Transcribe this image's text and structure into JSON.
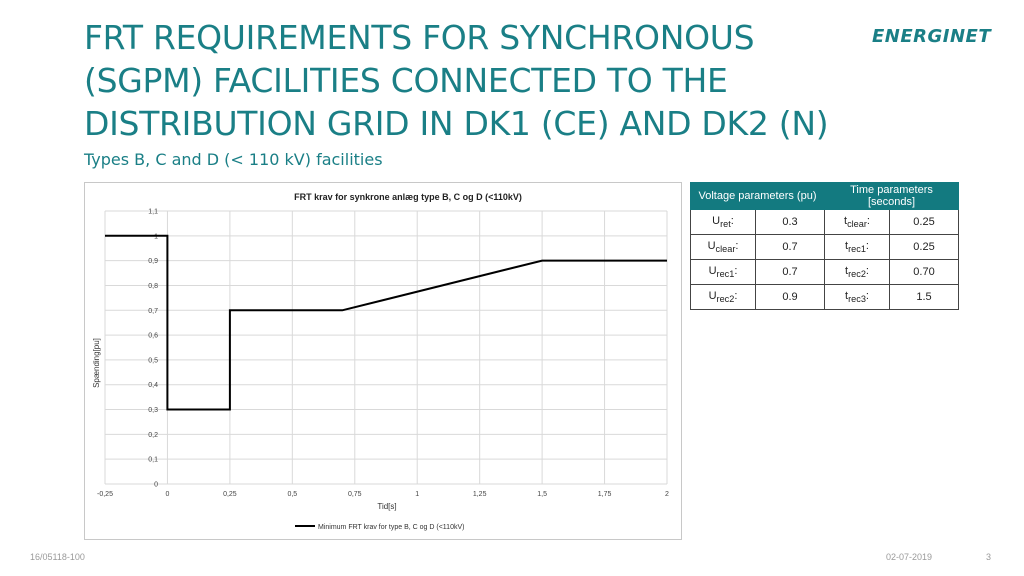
{
  "slide": {
    "title": "FRT REQUIREMENTS FOR SYNCHRONOUS (SGPM) FACILITIES CONNECTED TO THE DISTRIBUTION GRID IN DK1 (CE) AND DK2 (N)",
    "subtitle": "Types B, C and D (< 110 kV) facilities",
    "logo": "ENERGINET",
    "footer_left": "16/05118-100",
    "footer_date": "02-07-2019",
    "page_number": "3"
  },
  "colors": {
    "accent": "#1a7f86",
    "table_header": "#137a80",
    "line": "#000000",
    "grid": "#d9d9d9"
  },
  "table": {
    "headers": [
      "Voltage parameters (pu)",
      "Time parameters [seconds]"
    ],
    "rows": [
      {
        "u_base": "U",
        "u_sub": "ret",
        "u_val": "0.3",
        "t_base": "t",
        "t_sub": "clear",
        "t_val": "0.25"
      },
      {
        "u_base": "U",
        "u_sub": "clear",
        "u_val": "0.7",
        "t_base": "t",
        "t_sub": "rec1",
        "t_val": "0.25"
      },
      {
        "u_base": "U",
        "u_sub": "rec1",
        "u_val": "0.7",
        "t_base": "t",
        "t_sub": "rec2",
        "t_val": "0.70"
      },
      {
        "u_base": "U",
        "u_sub": "rec2",
        "u_val": "0.9",
        "t_base": "t",
        "t_sub": "rec3",
        "t_val": "1.5"
      }
    ]
  },
  "chart_data": {
    "type": "line",
    "title": "FRT krav for synkrone anlæg type B, C og D (<110kV)",
    "xlabel": "Tid[s]",
    "ylabel": "Spænding[pu]",
    "xlim": [
      -0.25,
      2
    ],
    "ylim": [
      0,
      1.1
    ],
    "x_ticks": [
      "-0,25",
      "0",
      "0,25",
      "0,5",
      "0,75",
      "1",
      "1,25",
      "1,5",
      "1,75",
      "2"
    ],
    "x_tick_values": [
      -0.25,
      0,
      0.25,
      0.5,
      0.75,
      1,
      1.25,
      1.5,
      1.75,
      2
    ],
    "y_ticks": [
      "0",
      "0,1",
      "0,2",
      "0,3",
      "0,4",
      "0,5",
      "0,6",
      "0,7",
      "0,8",
      "0,9",
      "1",
      "1,1"
    ],
    "y_tick_values": [
      0,
      0.1,
      0.2,
      0.3,
      0.4,
      0.5,
      0.6,
      0.7,
      0.8,
      0.9,
      1,
      1.1
    ],
    "grid": true,
    "legend_position": "bottom",
    "series": [
      {
        "name": "Minimum FRT krav for type B, C og D (<110kV)",
        "x": [
          -0.25,
          0,
          0,
          0.25,
          0.25,
          0.7,
          1.5,
          2
        ],
        "y": [
          1,
          1,
          0.3,
          0.3,
          0.7,
          0.7,
          0.9,
          0.9
        ]
      }
    ]
  }
}
